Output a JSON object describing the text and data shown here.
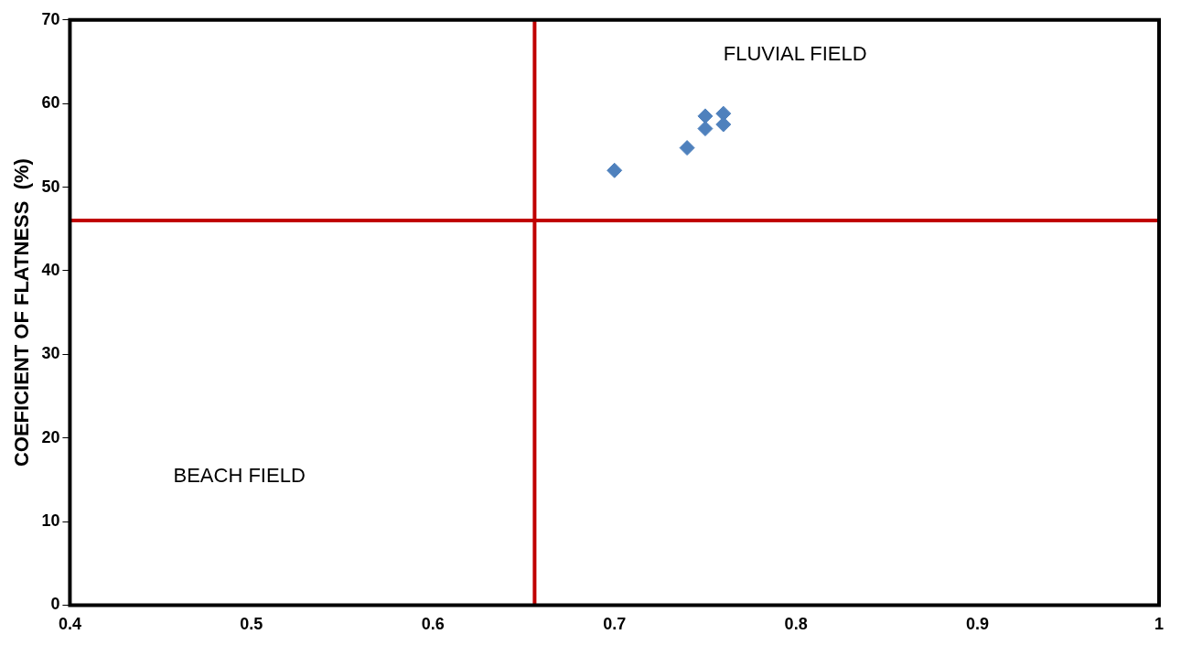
{
  "chart_data": {
    "type": "scatter",
    "ylabel": "COEFICIENT OF FLATNESS  (%)",
    "x": [
      0.7,
      0.74,
      0.75,
      0.75,
      0.76,
      0.76
    ],
    "series": [
      {
        "color": "#4f81bd",
        "values": [
          52,
          54.7,
          58.5,
          57,
          58.8,
          57.5
        ]
      }
    ],
    "marker": "diamond",
    "xlim": [
      0.4,
      1
    ],
    "xticks": [
      0.4,
      0.5,
      0.6,
      0.7,
      0.8,
      0.9,
      1
    ],
    "ylim": [
      0,
      70
    ],
    "yticks": [
      0,
      10,
      20,
      30,
      40,
      50,
      60,
      70
    ],
    "grid": false,
    "legend": false,
    "ref_lines": [
      {
        "axis": "x",
        "value": 0.656,
        "color": "#c00000"
      },
      {
        "axis": "y",
        "value": 46,
        "color": "#c00000"
      }
    ],
    "annotations": [
      "FLUVIAL FIELD",
      "BEACH FIELD"
    ]
  }
}
